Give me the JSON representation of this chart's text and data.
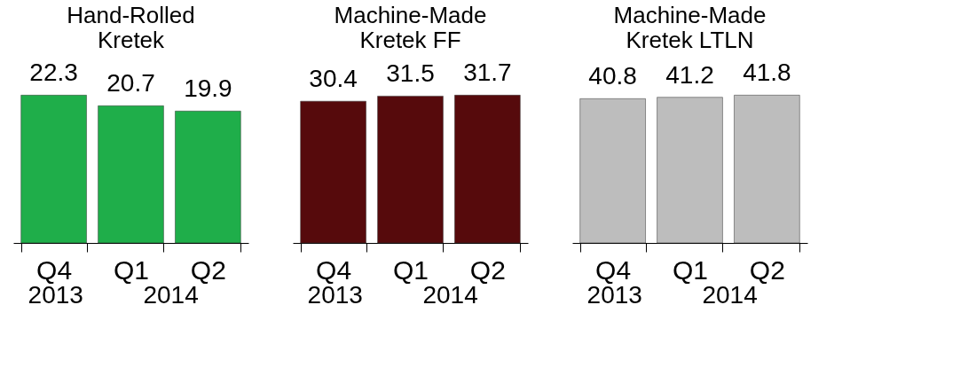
{
  "chart_data": [
    {
      "type": "bar",
      "title": "Hand-Rolled Kretek",
      "categories": [
        "Q4",
        "Q1",
        "Q2"
      ],
      "values": [
        22.3,
        20.7,
        19.9
      ],
      "color": "#1fae4a",
      "data_labels": true,
      "annotations": [
        "2013",
        "2014"
      ]
    },
    {
      "type": "bar",
      "title": "Machine-Made Kretek FF",
      "categories": [
        "Q4",
        "Q1",
        "Q2"
      ],
      "values": [
        30.4,
        31.5,
        31.7
      ],
      "color": "#560a0c",
      "data_labels": true,
      "annotations": [
        "2013",
        "2014"
      ]
    },
    {
      "type": "bar",
      "title": "Machine-Made Kretek LTLN",
      "categories": [
        "Q4",
        "Q1",
        "Q2"
      ],
      "values": [
        40.8,
        41.2,
        41.8
      ],
      "color": "#bdbdbd",
      "data_labels": true,
      "annotations": [
        "2013",
        "2014"
      ]
    }
  ]
}
